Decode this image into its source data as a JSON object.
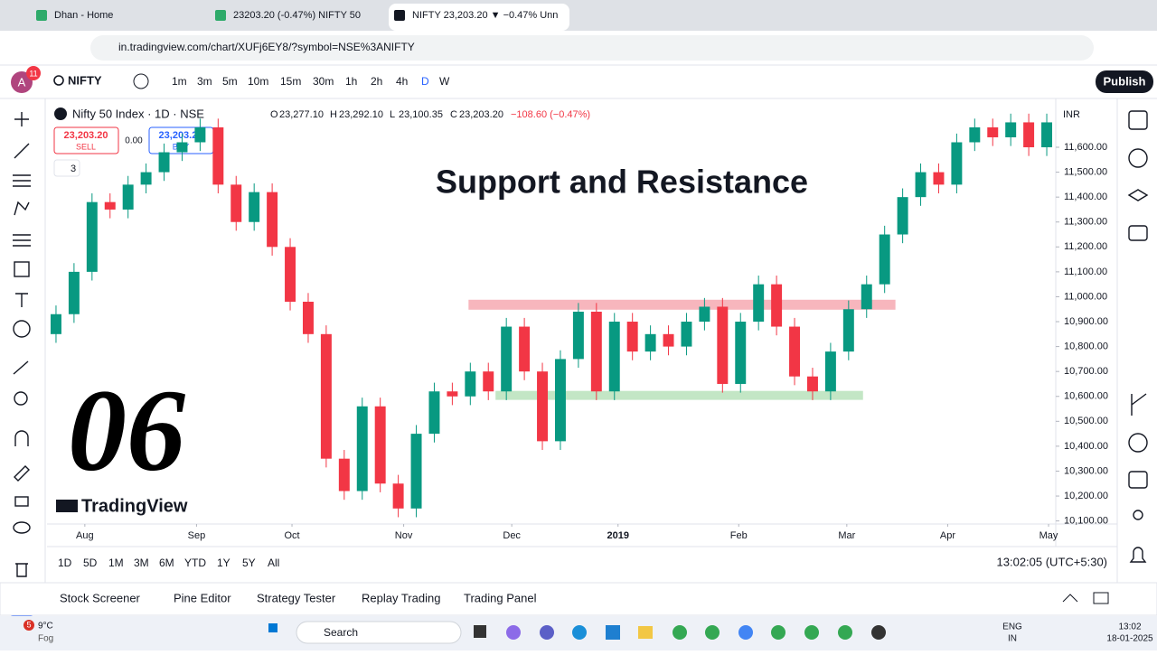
{
  "browser": {
    "tabs": [
      "Dhan - Home",
      "23203.20 (-0.47%) NIFTY 50",
      "NIFTY 23,203.20 ▼ −0.47% Unn"
    ],
    "url": "in.tradingview.com/chart/XUFj6EY8/?symbol=NSE%3ANIFTY"
  },
  "toolbar": {
    "avatar": "A",
    "badge": "11",
    "symbol": "NIFTY",
    "intervals": [
      "1m",
      "3m",
      "5m",
      "10m",
      "15m",
      "30m",
      "1h",
      "2h",
      "4h",
      "D",
      "W"
    ],
    "publish": "Publish"
  },
  "legend": {
    "name": "Nifty 50 Index · 1D · NSE",
    "o_label": "O",
    "o": "23,277.10",
    "h_label": "H",
    "h": "23,292.10",
    "l_label": "L",
    "l": "23,100.35",
    "c_label": "C",
    "c": "23,203.20",
    "change": "−108.60 (−0.47%)",
    "sell_price": "23,203.20",
    "sell": "SELL",
    "spread": "0.00",
    "buy_price": "23,203.20",
    "buy": "BUY",
    "indicators": "3",
    "currency": "INR"
  },
  "overlay": {
    "number": "06",
    "brand": "TradingView"
  },
  "chart_data": {
    "type": "candlestick",
    "title": "Support and Resistance",
    "open": [
      10850,
      10930,
      11100,
      11380,
      11350,
      11450,
      11500,
      11580,
      11620,
      11680,
      11450,
      11300,
      11420,
      11200,
      10980,
      10850,
      10350,
      10220,
      10560,
      10250,
      10150,
      10450,
      10620,
      10600,
      10700,
      10620,
      10880,
      10700,
      10420,
      10750,
      10940,
      10620,
      10900,
      10780,
      10850,
      10800,
      10900,
      10960,
      10650,
      10900,
      11050,
      10880,
      10680,
      10620,
      10780,
      10950,
      11050,
      11250,
      11400,
      11500,
      11450,
      11620,
      11680,
      11640,
      11700,
      11600
    ],
    "high": [
      10965,
      11135,
      11415,
      11415,
      11485,
      11535,
      11615,
      11655,
      11715,
      11715,
      11485,
      11455,
      11455,
      11235,
      11015,
      10885,
      10385,
      10595,
      10595,
      10285,
      10485,
      10655,
      10655,
      10735,
      10735,
      10915,
      10915,
      10735,
      10785,
      10975,
      10975,
      10935,
      10935,
      10885,
      10885,
      10935,
      10995,
      10995,
      10935,
      11085,
      11085,
      10915,
      10715,
      10815,
      10985,
      11085,
      11285,
      11435,
      11535,
      11535,
      11655,
      11715,
      11715,
      11735,
      11735,
      11735
    ],
    "low": [
      10815,
      10895,
      11065,
      11315,
      11315,
      11415,
      11465,
      11545,
      11585,
      11415,
      11265,
      11265,
      11165,
      10945,
      10815,
      10315,
      10185,
      10185,
      10215,
      10115,
      10115,
      10415,
      10565,
      10565,
      10585,
      10585,
      10665,
      10385,
      10385,
      10715,
      10585,
      10585,
      10745,
      10745,
      10765,
      10765,
      10865,
      10615,
      10615,
      10865,
      10845,
      10645,
      10585,
      10585,
      10745,
      10915,
      11015,
      11215,
      11365,
      11415,
      11415,
      11585,
      11605,
      11605,
      11565,
      11565
    ],
    "close": [
      10930,
      11100,
      11380,
      11350,
      11450,
      11500,
      11580,
      11620,
      11680,
      11450,
      11300,
      11420,
      11200,
      10980,
      10850,
      10350,
      10220,
      10560,
      10250,
      10150,
      10450,
      10620,
      10600,
      10700,
      10620,
      10880,
      10700,
      10420,
      10750,
      10940,
      10620,
      10900,
      10780,
      10850,
      10800,
      10900,
      10960,
      10650,
      10900,
      11050,
      10880,
      10680,
      10620,
      10780,
      10950,
      11050,
      11250,
      11400,
      11500,
      11450,
      11620,
      11680,
      11640,
      11700,
      11600,
      11700
    ],
    "up_color": "#089981",
    "down_color": "#f23645",
    "zones": [
      {
        "from": 10948,
        "to": 10988,
        "x": [
          23.4,
          47.1
        ],
        "color": "#f7b6bd"
      },
      {
        "from": 10586,
        "to": 10622,
        "x": [
          24.9,
          45.3
        ],
        "color": "#c3e6c5"
      }
    ],
    "xlim": [
      0,
      56
    ],
    "xticks": [
      {
        "value": 2.1,
        "label": "Aug"
      },
      {
        "value": 8.3,
        "label": "Sep"
      },
      {
        "value": 13.6,
        "label": "Oct"
      },
      {
        "value": 19.8,
        "label": "Nov"
      },
      {
        "value": 25.8,
        "label": "Dec"
      },
      {
        "value": 31.7,
        "label": "2019"
      },
      {
        "value": 38.4,
        "label": "Feb"
      },
      {
        "value": 44.4,
        "label": "Mar"
      },
      {
        "value": 50,
        "label": "Apr"
      },
      {
        "value": 55.6,
        "label": "May"
      }
    ],
    "ylim": [
      10095,
      11785
    ],
    "yticks": [
      {
        "value": 10100,
        "label": "10,100.00"
      },
      {
        "value": 10200,
        "label": "10,200.00"
      },
      {
        "value": 10300,
        "label": "10,300.00"
      },
      {
        "value": 10400,
        "label": "10,400.00"
      },
      {
        "value": 10500,
        "label": "10,500.00"
      },
      {
        "value": 10600,
        "label": "10,600.00"
      },
      {
        "value": 10700,
        "label": "10,700.00"
      },
      {
        "value": 10800,
        "label": "10,800.00"
      },
      {
        "value": 10900,
        "label": "10,900.00"
      },
      {
        "value": 11000,
        "label": "11,000.00"
      },
      {
        "value": 11100,
        "label": "11,100.00"
      },
      {
        "value": 11200,
        "label": "11,200.00"
      },
      {
        "value": 11300,
        "label": "11,300.00"
      },
      {
        "value": 11400,
        "label": "11,400.00"
      },
      {
        "value": 11500,
        "label": "11,500.00"
      },
      {
        "value": 11600,
        "label": "11,600.00"
      }
    ],
    "grid": false
  },
  "range_bar": {
    "ranges": [
      "1D",
      "5D",
      "1M",
      "3M",
      "6M",
      "YTD",
      "1Y",
      "5Y",
      "All"
    ],
    "clock": "13:02:05 (UTC+5:30)"
  },
  "panels": [
    "Stock Screener",
    "Pine Editor",
    "Strategy Tester",
    "Replay Trading",
    "Trading Panel"
  ],
  "taskbar": {
    "badge": "5",
    "temp": "9°C",
    "weather": "Fog",
    "search": "Search",
    "lang": "ENG",
    "region": "IN",
    "time": "13:02",
    "date": "18-01-2025"
  }
}
